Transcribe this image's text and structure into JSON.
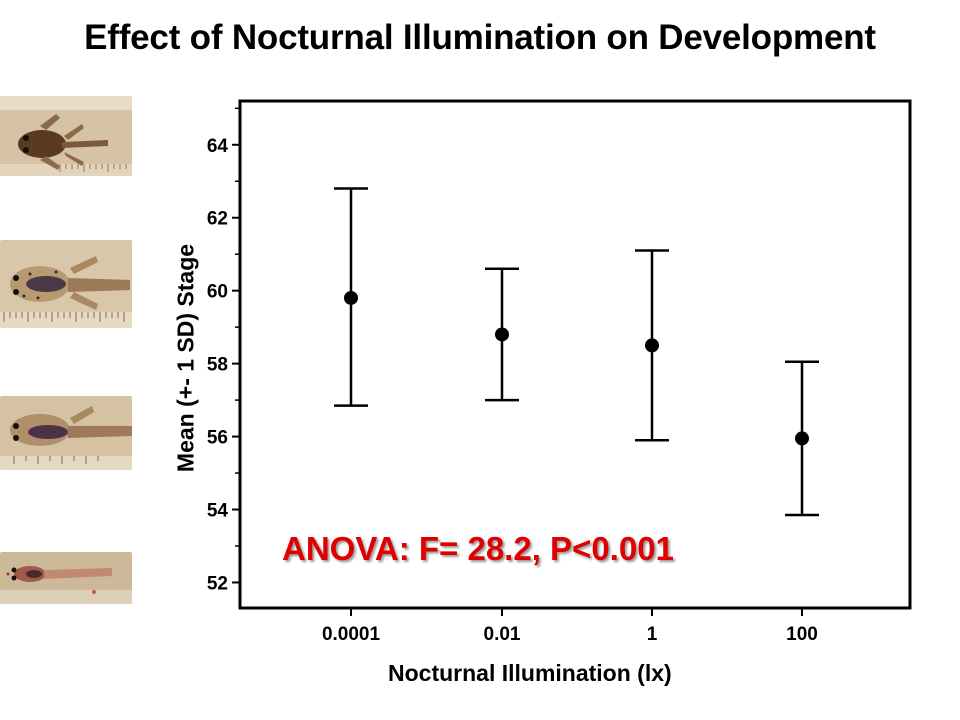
{
  "slide": {
    "title": "Effect of Nocturnal Illumination on Development",
    "annotation": "ANOVA: F= 28.2, P<0.001",
    "annotation_color": "#e00000"
  },
  "photos": [
    {
      "name": "tadpole-photo-late-stage"
    },
    {
      "name": "tadpole-photo-mid-late-stage"
    },
    {
      "name": "tadpole-photo-mid-stage"
    },
    {
      "name": "tadpole-photo-early-stage"
    }
  ],
  "chart_data": {
    "type": "scatter",
    "title": "",
    "xlabel": "Nocturnal Illumination (lx)",
    "ylabel": "Mean (+- 1 SD) Stage",
    "categories": [
      "0.0001",
      "0.01",
      "1",
      "100"
    ],
    "series": [
      {
        "values": [
          59.8,
          58.8,
          58.5,
          55.95
        ],
        "error_low": [
          56.85,
          57.0,
          55.9,
          53.85
        ],
        "error_high": [
          62.8,
          60.6,
          61.1,
          58.05
        ]
      }
    ],
    "ylim": [
      51.3,
      65.2
    ],
    "yticks": [
      52,
      54,
      56,
      58,
      60,
      62,
      64
    ],
    "grid": false,
    "legend": "none"
  }
}
